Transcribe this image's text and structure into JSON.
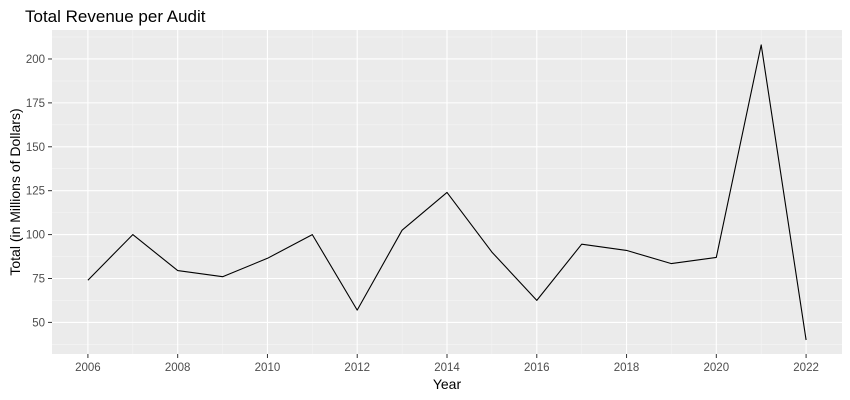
{
  "chart_data": {
    "type": "line",
    "title": "Total Revenue per Audit",
    "xlabel": "Year",
    "ylabel": "Total (in Millions of Dollars)",
    "x": [
      2006,
      2007,
      2008,
      2009,
      2010,
      2011,
      2012,
      2013,
      2014,
      2015,
      2016,
      2017,
      2018,
      2019,
      2020,
      2021,
      2022
    ],
    "series": [
      {
        "values": [
          74,
          100,
          79.5,
          76,
          86.5,
          100,
          57,
          102.5,
          124,
          90,
          62.5,
          94.5,
          91,
          83.5,
          87,
          208,
          40
        ]
      }
    ],
    "xlim": [
      2005.2,
      2022.8
    ],
    "ylim": [
      32,
      216.5
    ],
    "x_ticks": [
      2006,
      2008,
      2010,
      2012,
      2014,
      2016,
      2018,
      2020,
      2022
    ],
    "x_tick_labels": [
      "2006",
      "2008",
      "2010",
      "2012",
      "2014",
      "2016",
      "2018",
      "2020",
      "2022"
    ],
    "y_ticks": [
      50,
      75,
      100,
      125,
      150,
      175,
      200
    ],
    "y_tick_labels": [
      "50",
      "75",
      "100",
      "125",
      "150",
      "175",
      "200"
    ],
    "grid": true,
    "colors": {
      "panel_background": "#ebebeb",
      "grid_major": "#ffffff",
      "grid_minor": "#f5f5f5",
      "line": "#000000",
      "tick": "#333333"
    }
  }
}
